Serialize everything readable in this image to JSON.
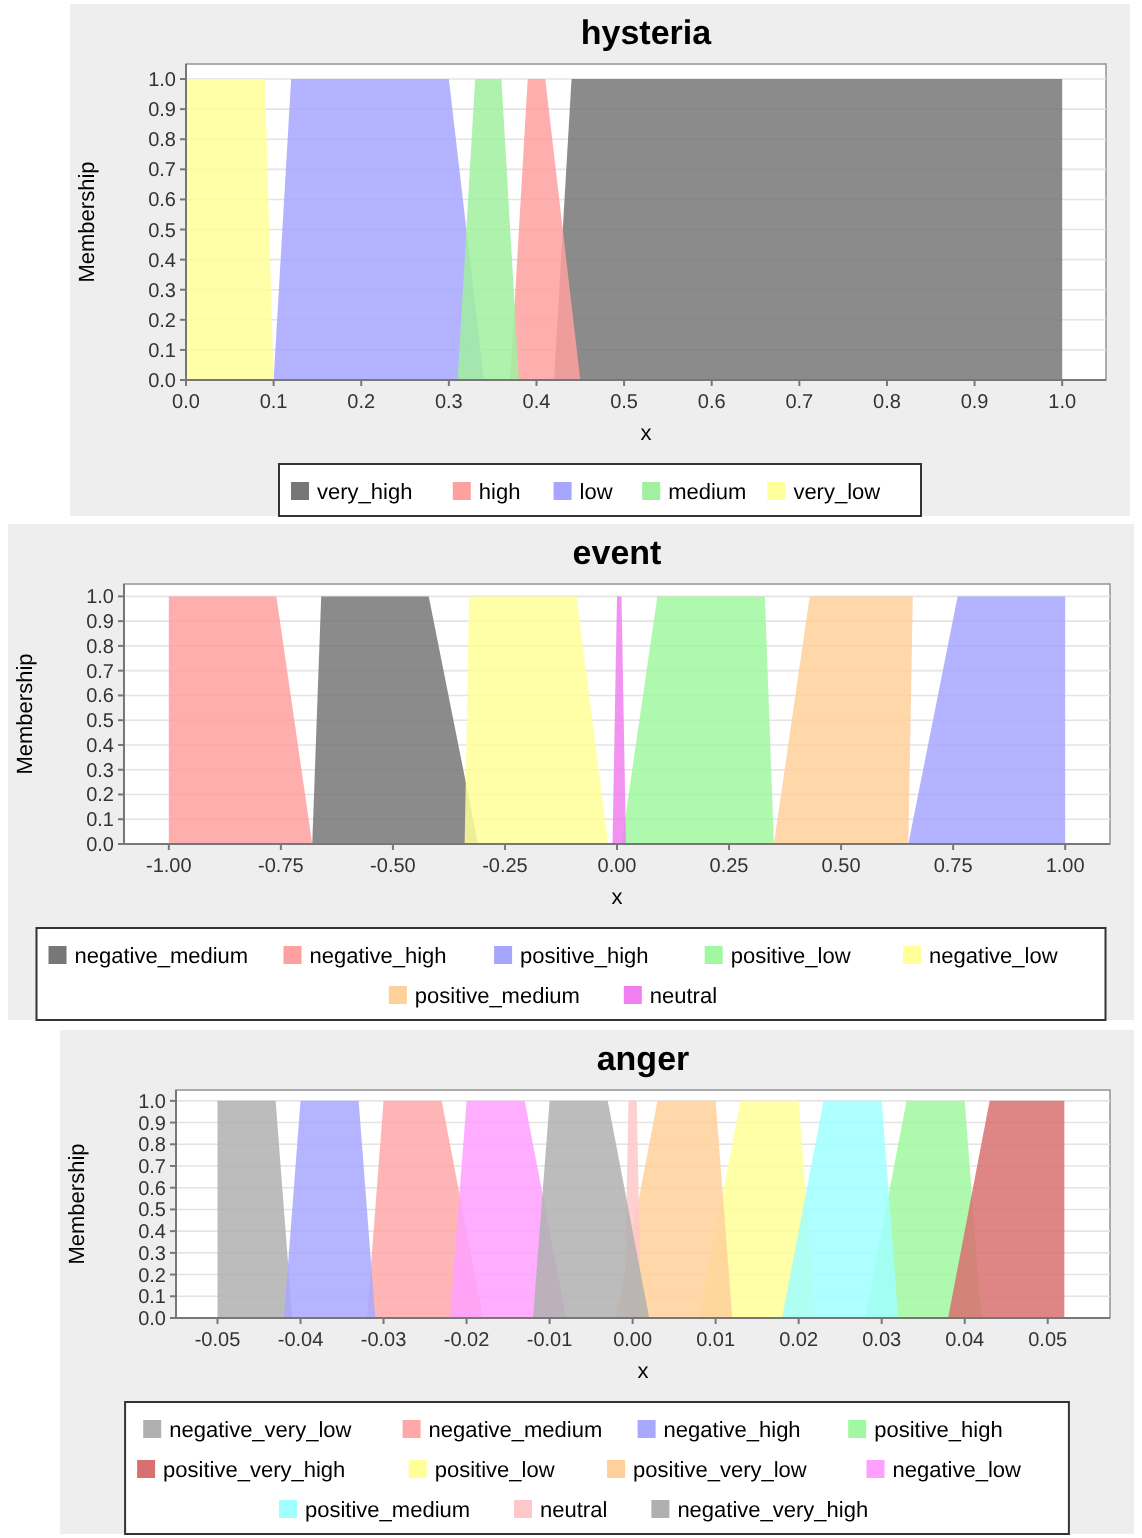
{
  "chart_data": [
    {
      "type": "area",
      "title": "hysteria",
      "xlabel": "x",
      "ylabel": "Membership",
      "legend": "bottom",
      "grid": "y",
      "marker": "none",
      "xlim": [
        0,
        1.05
      ],
      "ylim": [
        0,
        1.05
      ],
      "xticks": [
        {
          "value": 0,
          "label": "0.0"
        },
        {
          "value": 0.1,
          "label": "0.1"
        },
        {
          "value": 0.2,
          "label": "0.2"
        },
        {
          "value": 0.3,
          "label": "0.3"
        },
        {
          "value": 0.4,
          "label": "0.4"
        },
        {
          "value": 0.5,
          "label": "0.5"
        },
        {
          "value": 0.6,
          "label": "0.6"
        },
        {
          "value": 0.7,
          "label": "0.7"
        },
        {
          "value": 0.8,
          "label": "0.8"
        },
        {
          "value": 0.9,
          "label": "0.9"
        },
        {
          "value": 1,
          "label": "1.0"
        }
      ],
      "yticks": [
        {
          "value": 0,
          "label": "0.0"
        },
        {
          "value": 0.1,
          "label": "0.1"
        },
        {
          "value": 0.2,
          "label": "0.2"
        },
        {
          "value": 0.3,
          "label": "0.3"
        },
        {
          "value": 0.4,
          "label": "0.4"
        },
        {
          "value": 0.5,
          "label": "0.5"
        },
        {
          "value": 0.6,
          "label": "0.6"
        },
        {
          "value": 0.7,
          "label": "0.7"
        },
        {
          "value": 0.8,
          "label": "0.8"
        },
        {
          "value": 0.9,
          "label": "0.9"
        },
        {
          "value": 1,
          "label": "1.0"
        }
      ],
      "series": [
        {
          "name": "very_high",
          "color": "#777777",
          "x": [
            0.42,
            0.44,
            1.0,
            1.0
          ],
          "values": [
            0,
            1,
            1,
            0
          ]
        },
        {
          "name": "high",
          "color": "#ffa0a0",
          "x": [
            0.37,
            0.39,
            0.41,
            0.45
          ],
          "values": [
            0,
            1,
            1,
            0
          ]
        },
        {
          "name": "low",
          "color": "#a6a6ff",
          "x": [
            0.1,
            0.12,
            0.3,
            0.34
          ],
          "values": [
            0,
            1,
            1,
            0
          ]
        },
        {
          "name": "medium",
          "color": "#a0f0a0",
          "x": [
            0.31,
            0.33,
            0.36,
            0.38
          ],
          "values": [
            0,
            1,
            1,
            0
          ]
        },
        {
          "name": "very_low",
          "color": "#ffff99",
          "x": [
            0,
            0,
            0.09,
            0.1
          ],
          "values": [
            0,
            1,
            1,
            0
          ]
        }
      ]
    },
    {
      "type": "area",
      "title": "event",
      "xlabel": "x",
      "ylabel": "Membership",
      "legend": "bottom",
      "grid": "y",
      "marker": "none",
      "xlim": [
        -1.1,
        1.1
      ],
      "ylim": [
        0,
        1.05
      ],
      "xticks": [
        {
          "value": -1,
          "label": "-1.00"
        },
        {
          "value": -0.75,
          "label": "-0.75"
        },
        {
          "value": -0.5,
          "label": "-0.50"
        },
        {
          "value": -0.25,
          "label": "-0.25"
        },
        {
          "value": 0,
          "label": "0.00"
        },
        {
          "value": 0.25,
          "label": "0.25"
        },
        {
          "value": 0.5,
          "label": "0.50"
        },
        {
          "value": 0.75,
          "label": "0.75"
        },
        {
          "value": 1,
          "label": "1.00"
        }
      ],
      "yticks": [
        {
          "value": 0,
          "label": "0.0"
        },
        {
          "value": 0.1,
          "label": "0.1"
        },
        {
          "value": 0.2,
          "label": "0.2"
        },
        {
          "value": 0.3,
          "label": "0.3"
        },
        {
          "value": 0.4,
          "label": "0.4"
        },
        {
          "value": 0.5,
          "label": "0.5"
        },
        {
          "value": 0.6,
          "label": "0.6"
        },
        {
          "value": 0.7,
          "label": "0.7"
        },
        {
          "value": 0.8,
          "label": "0.8"
        },
        {
          "value": 0.9,
          "label": "0.9"
        },
        {
          "value": 1,
          "label": "1.0"
        }
      ],
      "series": [
        {
          "name": "negative_medium",
          "color": "#777777",
          "x": [
            -0.68,
            -0.66,
            -0.42,
            -0.31
          ],
          "values": [
            0,
            1,
            1,
            0
          ]
        },
        {
          "name": "negative_high",
          "color": "#ffa0a0",
          "x": [
            -1,
            -1,
            -0.76,
            -0.68
          ],
          "values": [
            0,
            1,
            1,
            0
          ]
        },
        {
          "name": "positive_high",
          "color": "#a6a6ff",
          "x": [
            0.65,
            0.76,
            1,
            1
          ],
          "values": [
            0,
            1,
            1,
            0
          ]
        },
        {
          "name": "positive_low",
          "color": "#a0f8a0",
          "x": [
            0.01,
            0.09,
            0.33,
            0.35
          ],
          "values": [
            0,
            1,
            1,
            0
          ]
        },
        {
          "name": "negative_low",
          "color": "#ffff99",
          "x": [
            -0.34,
            -0.33,
            -0.09,
            -0.02
          ],
          "values": [
            0,
            1,
            1,
            0
          ]
        },
        {
          "name": "positive_medium",
          "color": "#ffd09a",
          "x": [
            0.35,
            0.43,
            0.66,
            0.65
          ],
          "values": [
            0,
            1,
            1,
            0
          ]
        },
        {
          "name": "neutral",
          "color": "#f080f0",
          "x": [
            -0.01,
            0,
            0.01,
            0.02
          ],
          "values": [
            0,
            1,
            1,
            0
          ]
        }
      ]
    },
    {
      "type": "area",
      "title": "anger",
      "xlabel": "x",
      "ylabel": "Membership",
      "legend": "bottom",
      "grid": "y",
      "marker": "none",
      "xlim": [
        -0.055,
        0.0575
      ],
      "ylim": [
        0,
        1.05
      ],
      "xticks": [
        {
          "value": -0.05,
          "label": "-0.05"
        },
        {
          "value": -0.04,
          "label": "-0.04"
        },
        {
          "value": -0.03,
          "label": "-0.03"
        },
        {
          "value": -0.02,
          "label": "-0.02"
        },
        {
          "value": -0.01,
          "label": "-0.01"
        },
        {
          "value": 0,
          "label": "0.00"
        },
        {
          "value": 0.01,
          "label": "0.01"
        },
        {
          "value": 0.02,
          "label": "0.02"
        },
        {
          "value": 0.03,
          "label": "0.03"
        },
        {
          "value": 0.04,
          "label": "0.04"
        },
        {
          "value": 0.05,
          "label": "0.05"
        }
      ],
      "yticks": [
        {
          "value": 0,
          "label": "0.0"
        },
        {
          "value": 0.1,
          "label": "0.1"
        },
        {
          "value": 0.2,
          "label": "0.2"
        },
        {
          "value": 0.3,
          "label": "0.3"
        },
        {
          "value": 0.4,
          "label": "0.4"
        },
        {
          "value": 0.5,
          "label": "0.5"
        },
        {
          "value": 0.6,
          "label": "0.6"
        },
        {
          "value": 0.7,
          "label": "0.7"
        },
        {
          "value": 0.8,
          "label": "0.8"
        },
        {
          "value": 0.9,
          "label": "0.9"
        },
        {
          "value": 1,
          "label": "1.0"
        }
      ],
      "series": [
        {
          "name": "negative_very_low",
          "color": "#b0b0b0",
          "x": [
            -0.05,
            -0.05,
            -0.043,
            -0.041
          ],
          "values": [
            0,
            1,
            1,
            0
          ]
        },
        {
          "name": "negative_medium",
          "color": "#ffa8a8",
          "x": [
            -0.032,
            -0.03,
            -0.023,
            -0.018
          ],
          "values": [
            0,
            1,
            1,
            0
          ]
        },
        {
          "name": "negative_high",
          "color": "#a8a8ff",
          "x": [
            -0.042,
            -0.04,
            -0.033,
            -0.031
          ],
          "values": [
            0,
            1,
            1,
            0
          ]
        },
        {
          "name": "positive_high",
          "color": "#a0f8a0",
          "x": [
            0.028,
            0.033,
            0.04,
            0.042
          ],
          "values": [
            0,
            1,
            1,
            0
          ]
        },
        {
          "name": "positive_very_high",
          "color": "#d87070",
          "x": [
            0.038,
            0.043,
            0.052,
            0.052
          ],
          "values": [
            0,
            1,
            1,
            0
          ]
        },
        {
          "name": "positive_low",
          "color": "#ffff99",
          "x": [
            0.008,
            0.013,
            0.02,
            0.022
          ],
          "values": [
            0,
            1,
            1,
            0
          ]
        },
        {
          "name": "positive_very_low",
          "color": "#ffd09a",
          "x": [
            -0.002,
            0.003,
            0.01,
            0.012
          ],
          "values": [
            0,
            1,
            1,
            0
          ]
        },
        {
          "name": "negative_low",
          "color": "#ffa0ff",
          "x": [
            -0.022,
            -0.02,
            -0.013,
            -0.008
          ],
          "values": [
            0,
            1,
            1,
            0
          ]
        },
        {
          "name": "positive_medium",
          "color": "#a0ffff",
          "x": [
            0.018,
            0.023,
            0.03,
            0.032
          ],
          "values": [
            0,
            1,
            1,
            0
          ]
        },
        {
          "name": "neutral",
          "color": "#ffc8c8",
          "x": [
            -0.001,
            -0.0005,
            0.0005,
            0.001
          ],
          "values": [
            0,
            1,
            1,
            0
          ]
        },
        {
          "name": "negative_very_high",
          "color": "#b0b0b0",
          "x": [
            -0.012,
            -0.01,
            -0.003,
            0.002
          ],
          "values": [
            0,
            1,
            1,
            0
          ]
        }
      ]
    }
  ]
}
